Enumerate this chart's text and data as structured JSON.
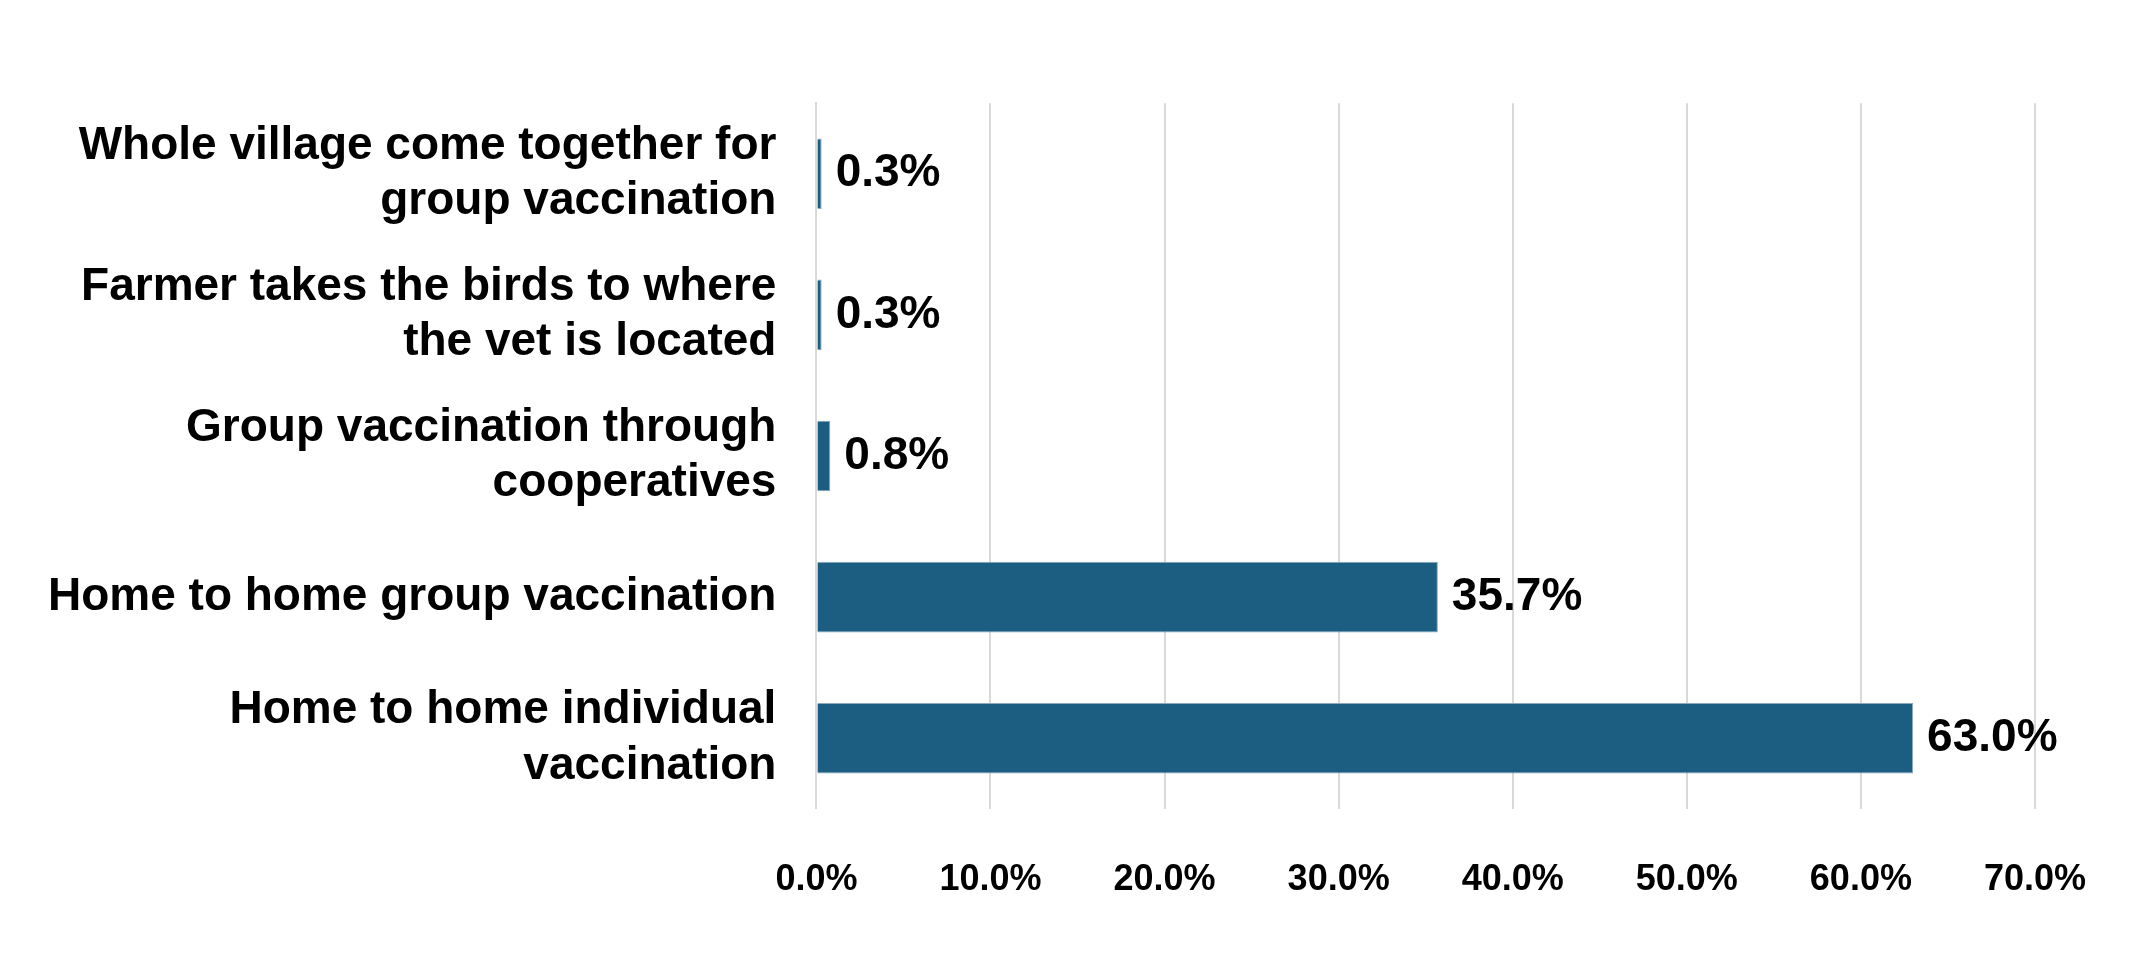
{
  "chart_data": {
    "type": "bar",
    "orientation": "horizontal",
    "categories": [
      "Whole village come together for group vaccination",
      "Farmer takes the birds to where the vet is located",
      "Group vaccination through cooperatives",
      "Home to home group vaccination",
      "Home to home individual vaccination"
    ],
    "values": [
      0.3,
      0.3,
      0.8,
      35.7,
      63.0
    ],
    "value_labels": [
      "0.3%",
      "0.3%",
      "0.8%",
      "35.7%",
      "63.0%"
    ],
    "color": "#1b5e82",
    "xlim": [
      0,
      70
    ],
    "xticks": [
      {
        "value": 0,
        "label": "0.0%"
      },
      {
        "value": 10,
        "label": "10.0%"
      },
      {
        "value": 20,
        "label": "20.0%"
      },
      {
        "value": 30,
        "label": "30.0%"
      },
      {
        "value": 40,
        "label": "40.0%"
      },
      {
        "value": 50,
        "label": "50.0%"
      },
      {
        "value": 60,
        "label": "60.0%"
      },
      {
        "value": 70,
        "label": "70.0%"
      }
    ],
    "grid": "x",
    "legend": false
  }
}
